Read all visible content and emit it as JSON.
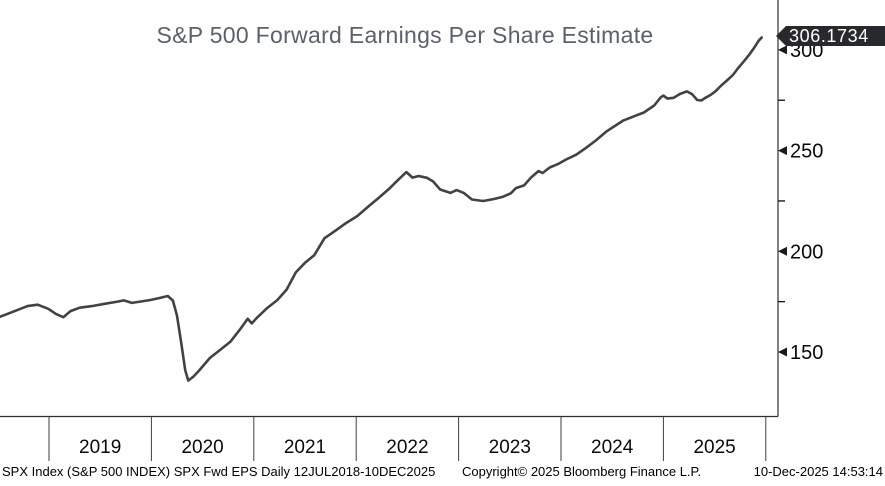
{
  "title": "S&P 500 Forward Earnings Per Share Estimate",
  "badge": {
    "last_value_label": "306.1734"
  },
  "footer": {
    "source": "SPX Index (S&P 500 INDEX) SPX Fwd EPS Daily 12JUL2018-10DEC2025",
    "copyright": "Copyright© 2025 Bloomberg Finance L.P.",
    "timestamp": "10-Dec-2025 14:53:14"
  },
  "colors": {
    "line": "#3f4347",
    "axis": "#2e2e2e",
    "separator": "#3f3f3f",
    "tick": "#1a1a1a",
    "badge_bg": "#27292d",
    "badge_text": "#ffffff",
    "title_text": "#5b616b"
  },
  "chart_data": {
    "type": "line",
    "title": "S&P 500 Forward Earnings Per Share Estimate",
    "xlabel": "",
    "ylabel": "",
    "x_range_years": [
      2018.52,
      2026.12
    ],
    "ylim": [
      130,
      312
    ],
    "y_ticks": [
      150,
      200,
      250,
      300
    ],
    "y_minor_ticks": [
      175,
      225,
      275
    ],
    "x_tick_labels": [
      "2019",
      "2020",
      "2021",
      "2022",
      "2023",
      "2024",
      "2025"
    ],
    "grid": false,
    "legend_position": "none",
    "last_value": 306.1734,
    "series": [
      {
        "name": "SPX Fwd EPS",
        "points": [
          [
            2018.52,
            167.5
          ],
          [
            2018.6,
            169.0
          ],
          [
            2018.7,
            171.0
          ],
          [
            2018.79,
            172.8
          ],
          [
            2018.89,
            173.5
          ],
          [
            2018.99,
            171.5
          ],
          [
            2019.07,
            168.8
          ],
          [
            2019.14,
            167.3
          ],
          [
            2019.21,
            170.3
          ],
          [
            2019.3,
            172.0
          ],
          [
            2019.42,
            172.8
          ],
          [
            2019.55,
            174.0
          ],
          [
            2019.67,
            175.0
          ],
          [
            2019.73,
            175.6
          ],
          [
            2019.81,
            174.4
          ],
          [
            2019.89,
            175.0
          ],
          [
            2019.99,
            175.8
          ],
          [
            2020.08,
            176.8
          ],
          [
            2020.16,
            177.8
          ],
          [
            2020.21,
            175.5
          ],
          [
            2020.25,
            168.0
          ],
          [
            2020.29,
            155.0
          ],
          [
            2020.33,
            141.0
          ],
          [
            2020.36,
            135.8
          ],
          [
            2020.41,
            137.8
          ],
          [
            2020.47,
            141.0
          ],
          [
            2020.57,
            147.0
          ],
          [
            2020.67,
            151.0
          ],
          [
            2020.77,
            155.0
          ],
          [
            2020.87,
            161.5
          ],
          [
            2020.94,
            166.5
          ],
          [
            2020.98,
            164.2
          ],
          [
            2021.03,
            167.0
          ],
          [
            2021.13,
            171.8
          ],
          [
            2021.23,
            175.8
          ],
          [
            2021.32,
            181.0
          ],
          [
            2021.41,
            189.5
          ],
          [
            2021.5,
            194.3
          ],
          [
            2021.59,
            198.0
          ],
          [
            2021.69,
            206.5
          ],
          [
            2021.79,
            210.0
          ],
          [
            2021.9,
            214.0
          ],
          [
            2022.01,
            217.5
          ],
          [
            2022.12,
            222.3
          ],
          [
            2022.22,
            226.5
          ],
          [
            2022.32,
            231.0
          ],
          [
            2022.41,
            235.5
          ],
          [
            2022.49,
            239.3
          ],
          [
            2022.55,
            236.6
          ],
          [
            2022.61,
            237.4
          ],
          [
            2022.69,
            236.5
          ],
          [
            2022.75,
            234.7
          ],
          [
            2022.82,
            230.7
          ],
          [
            2022.92,
            229.0
          ],
          [
            2022.98,
            230.4
          ],
          [
            2023.05,
            229.0
          ],
          [
            2023.13,
            225.7
          ],
          [
            2023.24,
            225.0
          ],
          [
            2023.34,
            225.9
          ],
          [
            2023.43,
            227.0
          ],
          [
            2023.51,
            228.8
          ],
          [
            2023.56,
            231.4
          ],
          [
            2023.64,
            232.7
          ],
          [
            2023.71,
            236.8
          ],
          [
            2023.78,
            239.8
          ],
          [
            2023.82,
            238.9
          ],
          [
            2023.89,
            241.6
          ],
          [
            2023.97,
            243.3
          ],
          [
            2024.05,
            245.6
          ],
          [
            2024.15,
            248.0
          ],
          [
            2024.24,
            251.2
          ],
          [
            2024.34,
            255.0
          ],
          [
            2024.44,
            259.4
          ],
          [
            2024.52,
            262.0
          ],
          [
            2024.61,
            265.0
          ],
          [
            2024.71,
            267.0
          ],
          [
            2024.81,
            268.9
          ],
          [
            2024.91,
            272.4
          ],
          [
            2024.97,
            276.2
          ],
          [
            2025.0,
            277.3
          ],
          [
            2025.04,
            275.8
          ],
          [
            2025.1,
            276.2
          ],
          [
            2025.16,
            278.1
          ],
          [
            2025.23,
            279.4
          ],
          [
            2025.28,
            278.0
          ],
          [
            2025.33,
            275.1
          ],
          [
            2025.37,
            274.9
          ],
          [
            2025.41,
            276.2
          ],
          [
            2025.46,
            277.6
          ],
          [
            2025.51,
            279.5
          ],
          [
            2025.56,
            282.1
          ],
          [
            2025.62,
            284.8
          ],
          [
            2025.68,
            287.6
          ],
          [
            2025.73,
            291.0
          ],
          [
            2025.79,
            294.6
          ],
          [
            2025.84,
            297.7
          ],
          [
            2025.89,
            301.3
          ],
          [
            2025.93,
            304.5
          ],
          [
            2025.96,
            306.17
          ]
        ]
      }
    ]
  }
}
